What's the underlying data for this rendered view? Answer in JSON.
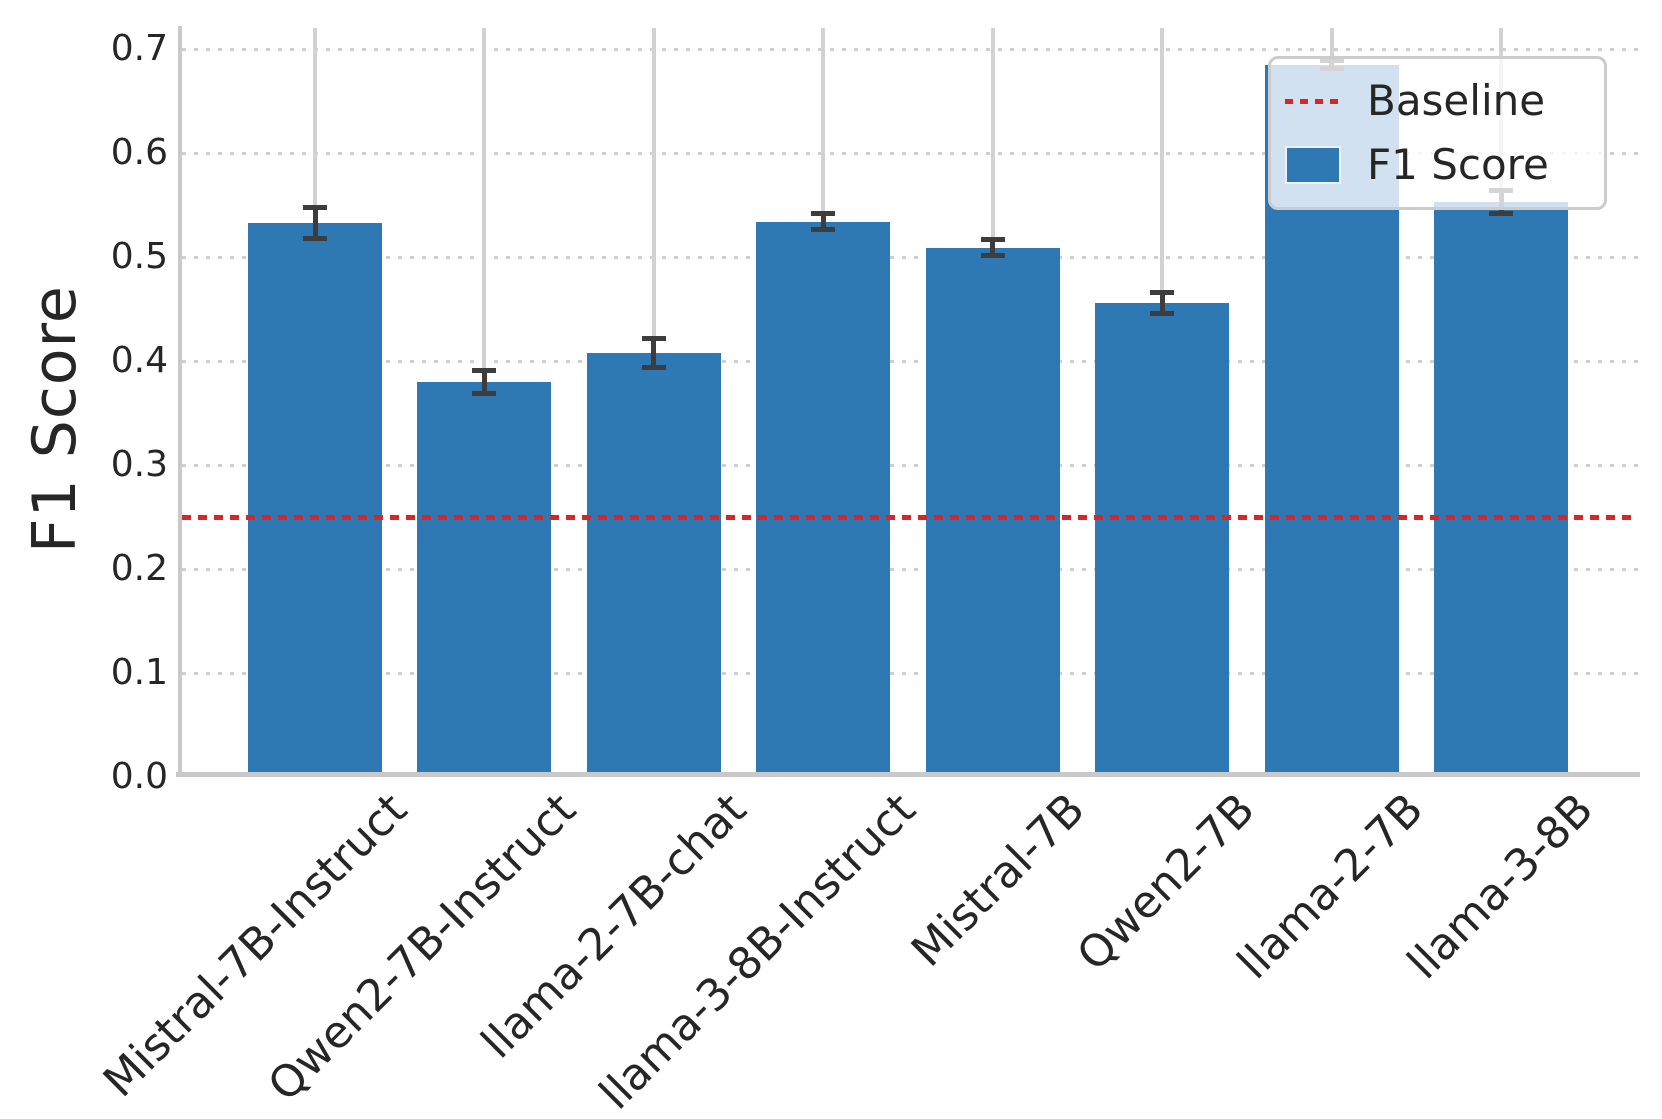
{
  "figure": {
    "background": "#ffffff"
  },
  "axis": {
    "ylabel": "F1 Score",
    "xlabel": "",
    "ytick_labels": [
      "0.0",
      "0.1",
      "0.2",
      "0.3",
      "0.4",
      "0.5",
      "0.6",
      "0.7"
    ]
  },
  "legend": {
    "items": [
      {
        "label": "Baseline",
        "type": "line",
        "color": "#d62728"
      },
      {
        "label": "F1 Score",
        "type": "patch",
        "color": "#2e79b4"
      }
    ]
  },
  "chart_data": {
    "type": "bar",
    "title": "",
    "xlabel": "",
    "ylabel": "F1 Score",
    "categories": [
      "Mistral-7B-Instruct",
      "Qwen2-7B-Instruct",
      "llama-2-7B-chat",
      "llama-3-8B-Instruct",
      "Mistral-7B",
      "Qwen2-7B",
      "llama-2-7B",
      "llama-3-8B"
    ],
    "series": [
      {
        "name": "F1 Score",
        "values": [
          0.533,
          0.38,
          0.408,
          0.534,
          0.509,
          0.456,
          0.685,
          0.553
        ],
        "errors": [
          0.015,
          0.011,
          0.014,
          0.008,
          0.008,
          0.01,
          0.004,
          0.011
        ],
        "color": "#2e79b4"
      }
    ],
    "baseline": {
      "label": "Baseline",
      "value": 0.25,
      "color": "#d62728",
      "style": "dotted"
    },
    "yticks": [
      0.0,
      0.1,
      0.2,
      0.3,
      0.4,
      0.5,
      0.6,
      0.7
    ],
    "ylim": [
      0.0,
      0.72
    ],
    "grid": {
      "horizontal": "dotted",
      "vertical": "solid",
      "color": "#cfcfcf"
    },
    "legend_position": "upper right",
    "colors": {
      "bar": "#2e79b4",
      "baseline": "#d62728",
      "errorbar": "#3d3d3d",
      "grid": "#d2d2d2",
      "spine": "#c9c9c9",
      "text": "#262626"
    }
  }
}
